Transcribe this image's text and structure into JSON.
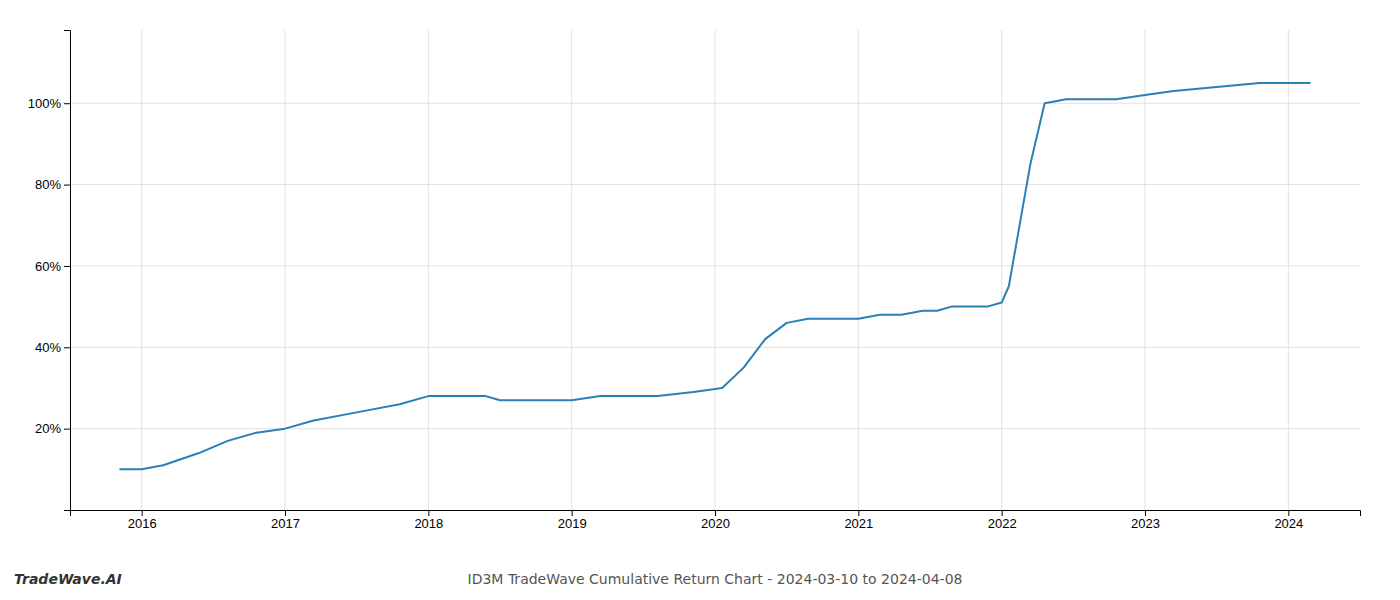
{
  "chart_data": {
    "type": "line",
    "title": "ID3M TradeWave Cumulative Return Chart - 2024-03-10 to 2024-04-08",
    "annotations": [
      "TradeWave.AI"
    ],
    "color": "#2980b9",
    "x": [
      2015.85,
      2016.0,
      2016.15,
      2016.4,
      2016.6,
      2016.8,
      2017.0,
      2017.2,
      2017.5,
      2017.8,
      2018.0,
      2018.2,
      2018.4,
      2018.5,
      2018.7,
      2018.9,
      2019.0,
      2019.2,
      2019.4,
      2019.6,
      2019.85,
      2020.05,
      2020.2,
      2020.35,
      2020.5,
      2020.65,
      2020.8,
      2021.0,
      2021.15,
      2021.3,
      2021.45,
      2021.55,
      2021.65,
      2021.75,
      2021.9,
      2022.0,
      2022.05,
      2022.1,
      2022.15,
      2022.2,
      2022.3,
      2022.45,
      2022.6,
      2022.8,
      2023.0,
      2023.2,
      2023.5,
      2023.8,
      2024.0,
      2024.15
    ],
    "values": [
      10,
      10,
      11,
      14,
      17,
      19,
      20,
      22,
      24,
      26,
      28,
      28,
      28,
      27,
      27,
      27,
      27,
      28,
      28,
      28,
      29,
      30,
      35,
      42,
      46,
      47,
      47,
      47,
      48,
      48,
      49,
      49,
      50,
      50,
      50,
      51,
      55,
      65,
      75,
      85,
      100,
      101,
      101,
      101,
      102,
      103,
      104,
      105,
      105,
      105
    ],
    "xlim": [
      2015.5,
      2024.5
    ],
    "ylim": [
      0,
      118
    ],
    "xticks": [
      2016,
      2017,
      2018,
      2019,
      2020,
      2021,
      2022,
      2023,
      2024
    ],
    "yticks": [
      {
        "value": 20,
        "label": "20%"
      },
      {
        "value": 40,
        "label": "40%"
      },
      {
        "value": 60,
        "label": "60%"
      },
      {
        "value": 80,
        "label": "80%"
      },
      {
        "value": 100,
        "label": "100%"
      }
    ],
    "grid": true
  }
}
